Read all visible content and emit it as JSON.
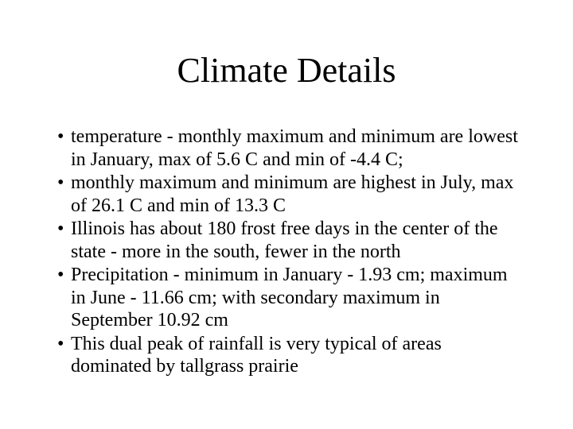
{
  "slide": {
    "title": "Climate Details",
    "background_color": "#ffffff",
    "text_color": "#000000",
    "bullet_char": "•",
    "bullets": [
      {
        "lines": [
          "temperature - monthly maximum and minimum are lowest",
          "in January, max of 5.6 C and min of -4.4 C;"
        ]
      },
      {
        "lines": [
          "monthly maximum and minimum are highest in July, max",
          "of 26.1 C and min of 13.3 C"
        ]
      },
      {
        "lines": [
          "Illinois has about 180 frost free days in the center of the",
          "state - more in the south, fewer in the north"
        ]
      },
      {
        "lines": [
          "Precipitation - minimum in January - 1.93 cm; maximum",
          "in June - 11.66 cm; with secondary maximum in",
          "September 10.92 cm"
        ]
      },
      {
        "lines": [
          "This dual peak of rainfall is very typical of areas",
          "dominated by tallgrass prairie"
        ]
      }
    ]
  }
}
